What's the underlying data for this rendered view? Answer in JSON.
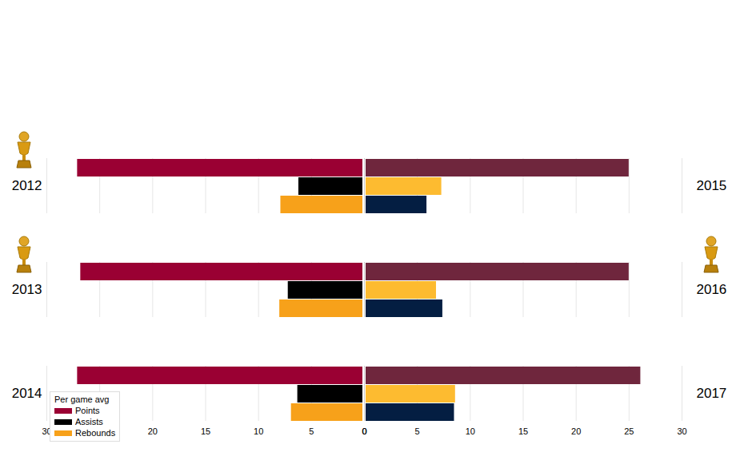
{
  "chart_data": [
    {
      "type": "bar",
      "orientation": "horizontal",
      "categories": [
        "2012",
        "2013",
        "2014"
      ],
      "series": [
        {
          "name": "Points",
          "color": "#9a0033",
          "values": [
            27.1,
            26.8,
            27.1
          ]
        },
        {
          "name": "Assists",
          "color": "#000000",
          "values": [
            6.2,
            7.2,
            6.3
          ]
        },
        {
          "name": "Rebounds",
          "color": "#f7a11a",
          "values": [
            7.9,
            8.0,
            6.9
          ]
        }
      ],
      "xlim": [
        0,
        30
      ],
      "xticks": [
        0,
        5,
        10,
        15,
        20,
        25,
        30
      ],
      "grid": true,
      "legend": "lower left",
      "legend_title": "Per game avg",
      "champion_years": [
        "2012",
        "2013"
      ]
    },
    {
      "type": "bar",
      "orientation": "horizontal",
      "categories": [
        "2015",
        "2016",
        "2017"
      ],
      "series": [
        {
          "name": "Points",
          "color": "#6f263d",
          "values": [
            25.0,
            25.0,
            26.1
          ]
        },
        {
          "name": "Assists",
          "color": "#fdbb30",
          "values": [
            7.3,
            6.8,
            8.6
          ]
        },
        {
          "name": "Rebounds",
          "color": "#041e42",
          "values": [
            5.9,
            7.4,
            8.5
          ]
        }
      ],
      "xlim": [
        0,
        30
      ],
      "xticks": [
        0,
        5,
        10,
        15,
        20,
        25,
        30
      ],
      "grid": true,
      "champion_years": [
        "2016"
      ]
    }
  ]
}
